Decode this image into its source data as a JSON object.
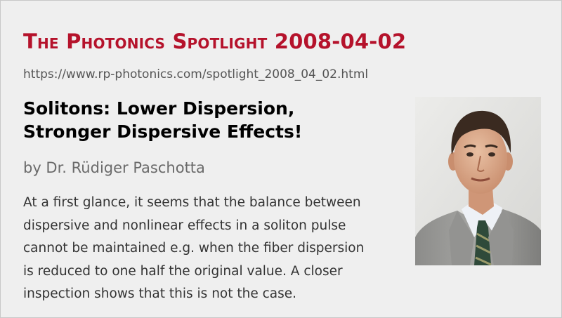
{
  "header": {
    "series_title": "The Photonics Spotlight 2008-04-02",
    "url": "https://www.rp-photonics.com/spotlight_2008_04_02.html"
  },
  "article": {
    "title_line1": "Solitons: Lower Dispersion,",
    "title_line2": "Stronger Dispersive Effects!",
    "author": "by Dr. Rüdiger Paschotta",
    "abstract": "At a first glance, it seems that the balance between dispersive and nonlinear effects in a soliton pulse cannot be maintained e.g. when the fiber dispersion is reduced to one half the original value. A closer inspection shows that this is not the case.",
    "photo_alt": "author-portrait"
  },
  "colors": {
    "accent": "#b5122b",
    "background": "#efefef",
    "url_text": "#555555",
    "author_text": "#6a6a6a",
    "body_text": "#333333"
  }
}
